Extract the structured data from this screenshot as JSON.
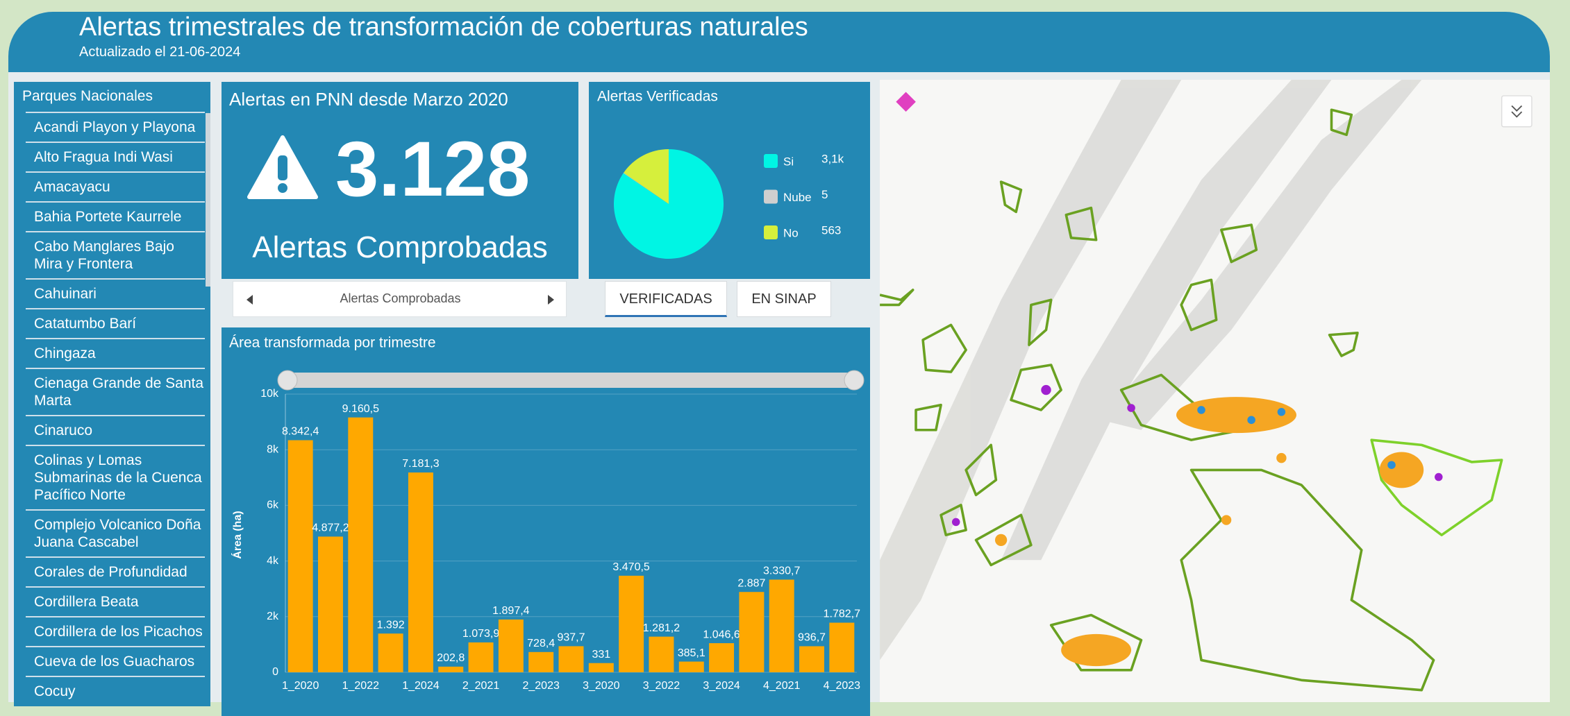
{
  "header": {
    "title": "Alertas trimestrales de transformación de coberturas naturales",
    "subtitle": "Actualizado el 21-06-2024"
  },
  "sidebar": {
    "title": "Parques Nacionales",
    "items": [
      "Acandi Playon y Playona",
      "Alto Fragua Indi Wasi",
      "Amacayacu",
      "Bahia Portete Kaurrele",
      "Cabo Manglares Bajo Mira y Frontera",
      "Cahuinari",
      "Catatumbo Barí",
      "Chingaza",
      "Cienaga Grande de Santa Marta",
      "Cinaruco",
      "Colinas y Lomas Submarinas de la Cuenca Pacífico Norte",
      "Complejo Volcanico Doña Juana Cascabel",
      "Corales de Profundidad",
      "Cordillera Beata",
      "Cordillera de los Picachos",
      "Cueva de los Guacharos",
      "Cocuy"
    ]
  },
  "indicator": {
    "title": "Alertas en PNN desde Marzo 2020",
    "value": "3.128",
    "label": "Alertas Comprobadas",
    "nav_label": "Alertas Comprobadas"
  },
  "tabs": [
    "VERIFICADAS",
    "EN SINAP"
  ],
  "chart_data": [
    {
      "type": "pie",
      "title": "Alertas Verificadas",
      "categories": [
        "Si",
        "Nube",
        "No"
      ],
      "values": [
        3100,
        5,
        563
      ],
      "value_labels": [
        "3,1k",
        "5",
        "563"
      ],
      "colors": [
        "#00f5e4",
        "#cfcfcf",
        "#d6ef3c"
      ]
    },
    {
      "type": "bar",
      "title": "Área transformada por trimestre",
      "y_label": "Área (ha)",
      "color": "#ffa800",
      "categories": [
        "1_2020",
        null,
        "1_2022",
        null,
        "1_2024",
        null,
        "2_2021",
        null,
        "2_2023",
        null,
        "3_2020",
        null,
        "3_2022",
        null,
        "3_2024",
        null,
        "4_2021",
        null,
        "4_2023"
      ],
      "values": [
        8342.4,
        4877.2,
        9160.5,
        1392,
        7181.3,
        202.8,
        1073.9,
        1897.4,
        728.4,
        937.7,
        331,
        3470.5,
        1281.2,
        385.1,
        1046.6,
        2887,
        3330.7,
        936.7,
        1782.7
      ],
      "value_labels": [
        "8.342,4",
        "4.877,2",
        "9.160,5",
        "1.392",
        "7.181,3",
        "202,8",
        "1.073,9",
        "1.897,4",
        "728,4",
        "937,7",
        "331",
        "3.470,5",
        "1.281,2",
        "385,1",
        "1.046,6",
        "2.887",
        "3.330,7",
        "936,7",
        "1.782,7"
      ],
      "ylim": [
        0,
        10000
      ],
      "yticks": [
        0,
        {
          "value": 2000,
          "label": "2k"
        },
        {
          "value": 4000,
          "label": "4k"
        },
        {
          "value": 6000,
          "label": "6k"
        },
        {
          "value": 8000,
          "label": "8k"
        },
        {
          "value": 10000,
          "label": "10k"
        }
      ],
      "grid": true
    }
  ]
}
